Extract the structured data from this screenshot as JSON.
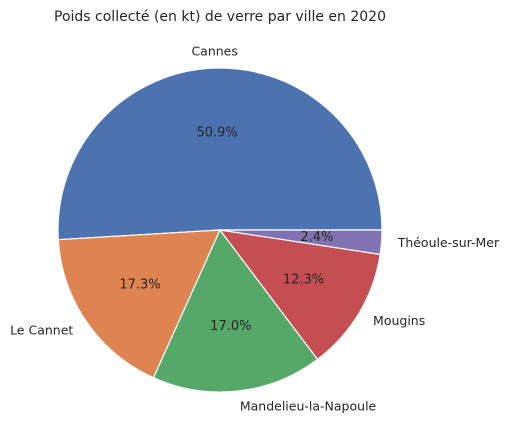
{
  "chart_data": {
    "type": "pie",
    "title": "Poids collecté (en kt) de verre par ville en 2020",
    "categories": [
      "Cannes",
      "Le Cannet",
      "Mandelieu-la-Napoule",
      "Mougins",
      "Théoule-sur-Mer"
    ],
    "values": [
      50.9,
      17.3,
      17.0,
      12.3,
      2.4
    ],
    "percent_labels": [
      "50.9%",
      "17.3%",
      "17.0%",
      "12.3%",
      "2.4%"
    ],
    "colors": [
      "#4c72b0",
      "#dd8452",
      "#55a868",
      "#c44e52",
      "#8172b3"
    ],
    "legend": "none",
    "start_angle": 0,
    "direction": "counterclockwise"
  }
}
